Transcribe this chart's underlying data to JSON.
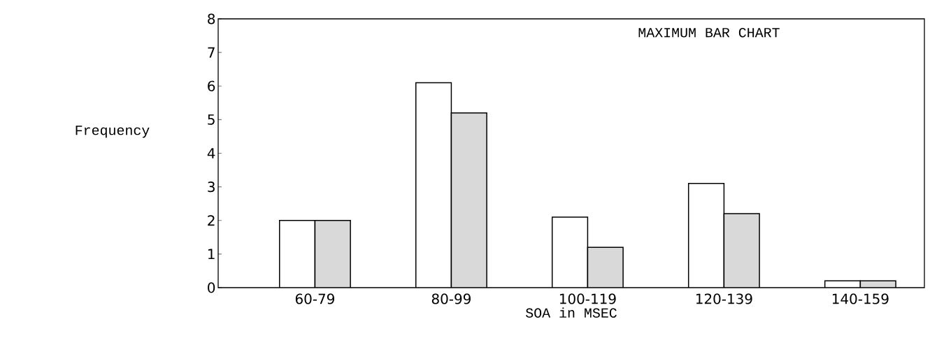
{
  "chart_data": {
    "type": "bar",
    "title": "MAXIMUM BAR CHART",
    "xlabel": "SOA in MSEC",
    "ylabel": "Frequency",
    "categories": [
      "60-79",
      "80-99",
      "100-119",
      "120-139",
      "140-159"
    ],
    "series": [
      {
        "color": "#ffffff",
        "values": [
          2,
          6.1,
          2.1,
          3.1,
          0.2
        ]
      },
      {
        "color": "#d9d9d9",
        "values": [
          2,
          5.2,
          1.2,
          2.2,
          0.2
        ]
      }
    ],
    "ylim": [
      0,
      8
    ],
    "yticks": [
      0,
      1,
      2,
      3,
      4,
      5,
      6,
      7,
      8
    ]
  }
}
